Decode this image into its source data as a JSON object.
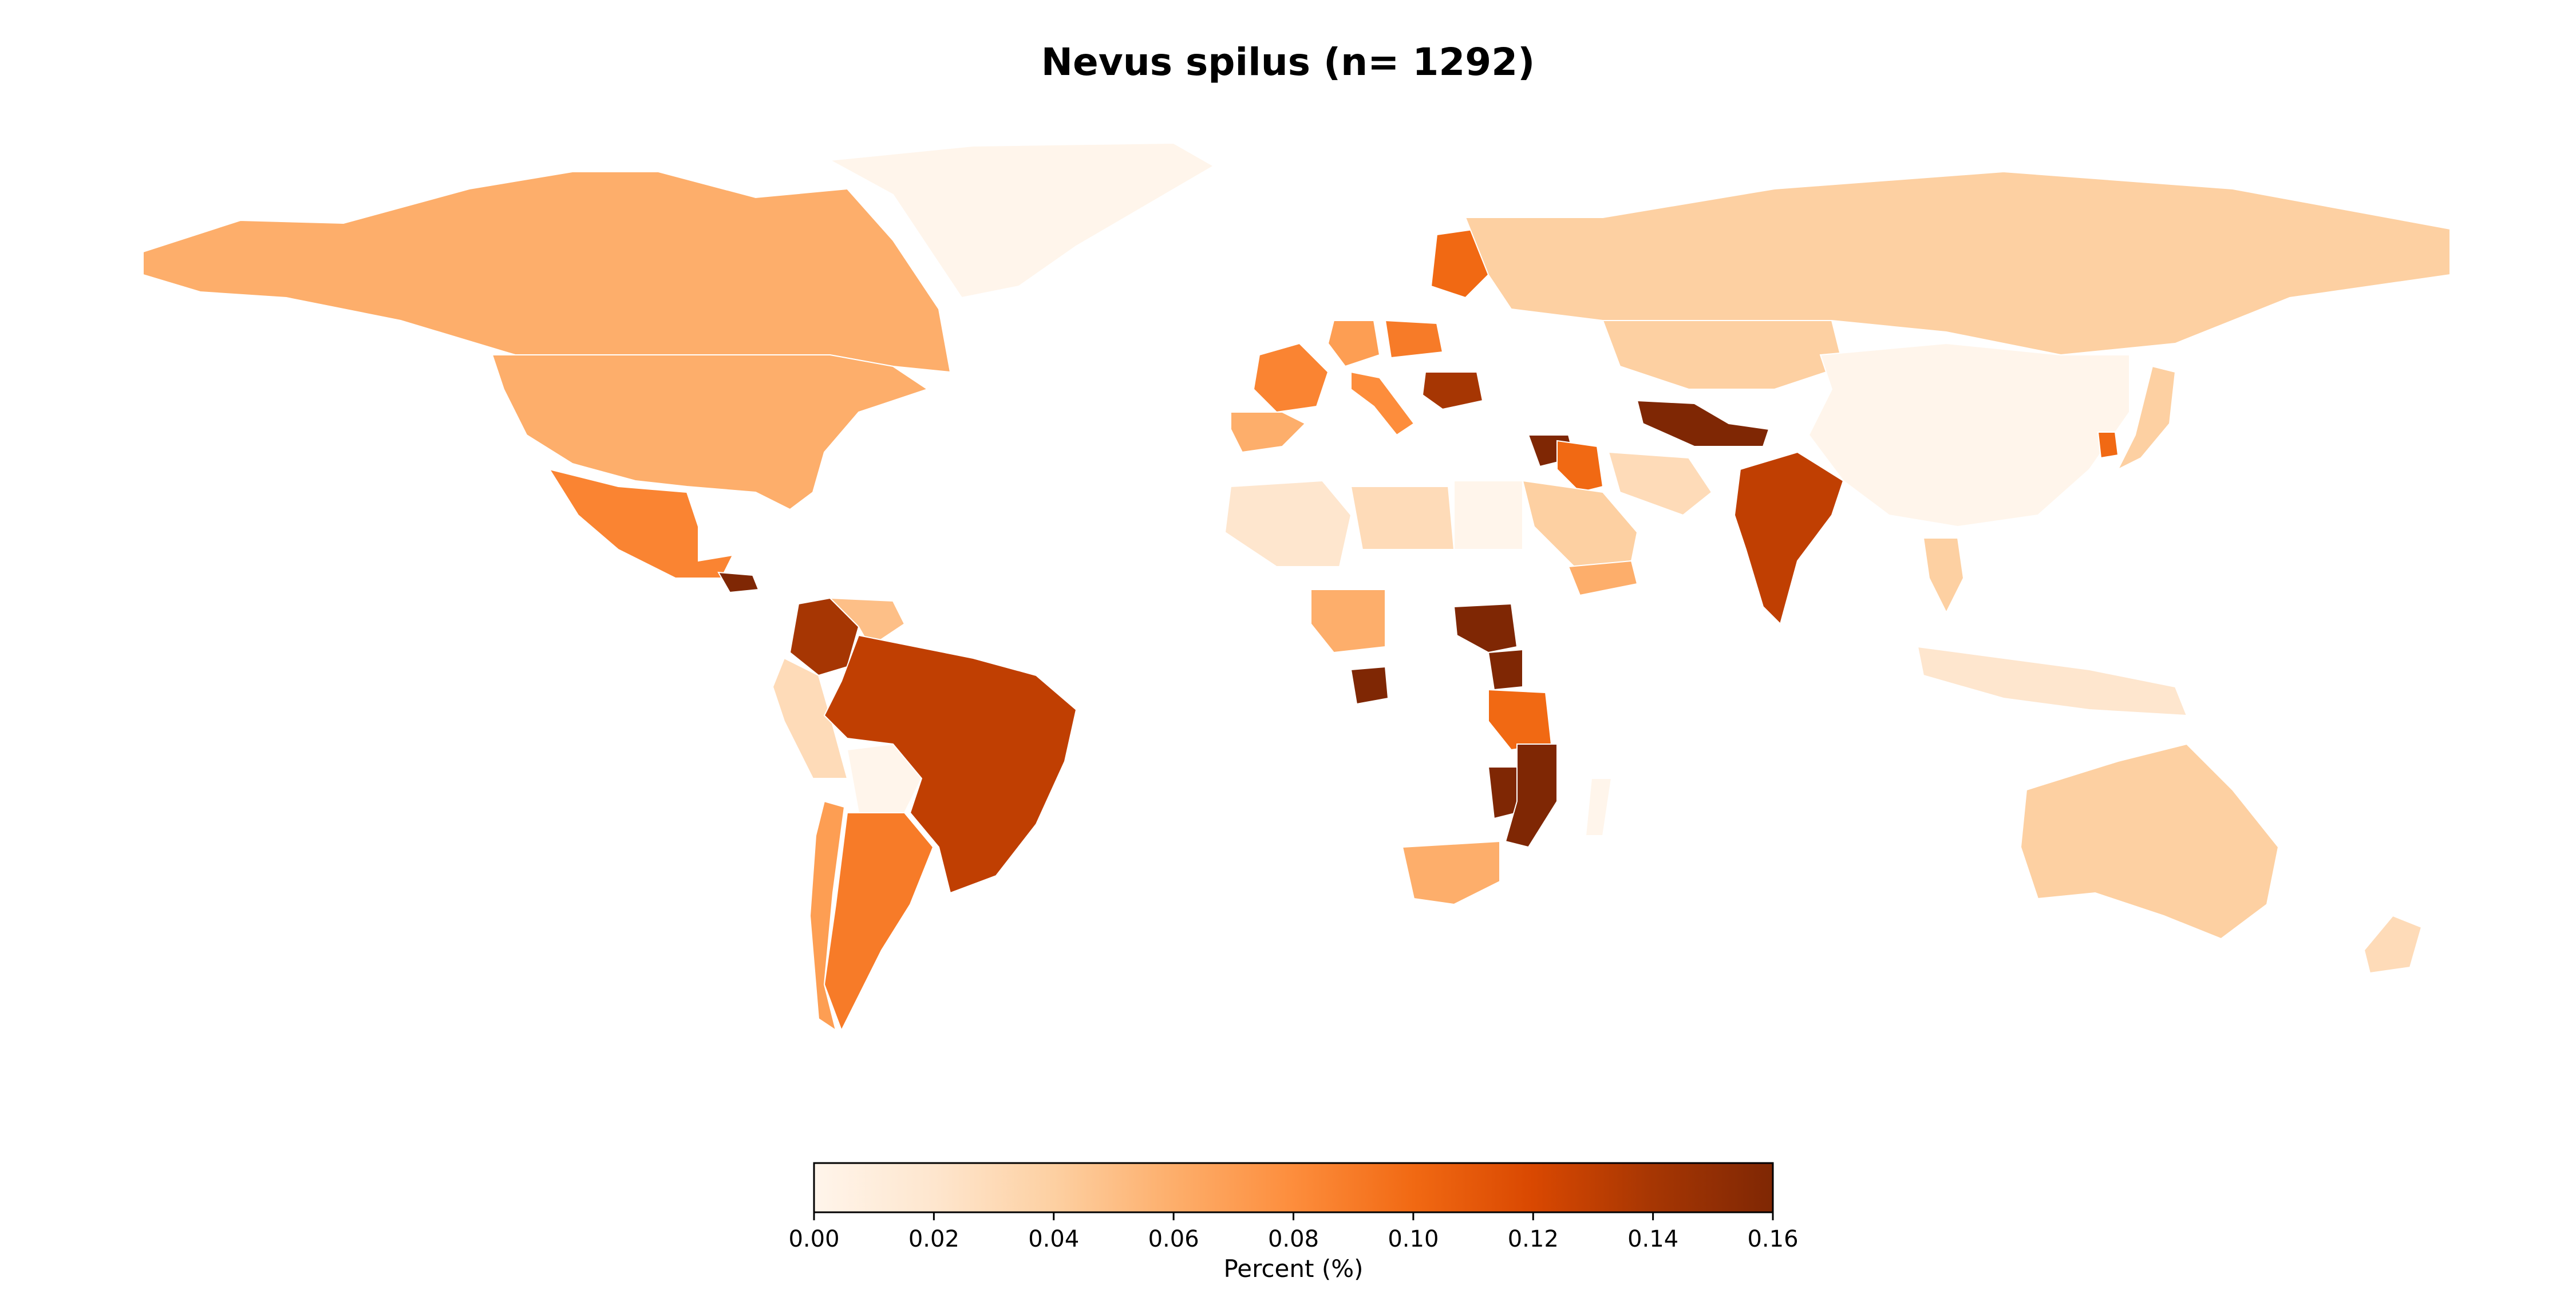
{
  "title": "Nevus spilus (n= 1292)",
  "colorbar": {
    "label": "Percent (%)",
    "min": 0.0,
    "max": 0.16,
    "ticks": [
      "0.00",
      "0.02",
      "0.04",
      "0.06",
      "0.08",
      "0.10",
      "0.12",
      "0.14",
      "0.16"
    ],
    "tick_values": [
      0.0,
      0.02,
      0.04,
      0.06,
      0.08,
      0.1,
      0.12,
      0.14,
      0.16
    ],
    "colormap": [
      "#fff5eb",
      "#fee6ce",
      "#fdd0a2",
      "#fdae6b",
      "#fd8d3c",
      "#f16913",
      "#d94801",
      "#a63603",
      "#7f2704"
    ]
  },
  "chart_data": {
    "type": "choropleth",
    "title": "Nevus spilus (n= 1292)",
    "value_unit": "Percent (%)",
    "value_range": [
      0.0,
      0.16
    ],
    "regions": [
      {
        "name": "Canada",
        "value": 0.06
      },
      {
        "name": "United States",
        "value": 0.06
      },
      {
        "name": "Mexico",
        "value": 0.085
      },
      {
        "name": "Honduras",
        "value": 0.16
      },
      {
        "name": "Colombia",
        "value": 0.14
      },
      {
        "name": "Venezuela",
        "value": 0.05
      },
      {
        "name": "Peru",
        "value": 0.03
      },
      {
        "name": "Bolivia",
        "value": 0.0
      },
      {
        "name": "Brazil",
        "value": 0.13
      },
      {
        "name": "Argentina",
        "value": 0.09
      },
      {
        "name": "Chile",
        "value": 0.07
      },
      {
        "name": "Greenland",
        "value": 0.0
      },
      {
        "name": "France",
        "value": 0.085
      },
      {
        "name": "Spain",
        "value": 0.06
      },
      {
        "name": "Germany",
        "value": 0.07
      },
      {
        "name": "Poland",
        "value": 0.09
      },
      {
        "name": "Finland",
        "value": 0.1
      },
      {
        "name": "Romania",
        "value": 0.14
      },
      {
        "name": "Italy",
        "value": 0.08
      },
      {
        "name": "Russia",
        "value": 0.04
      },
      {
        "name": "Kazakhstan",
        "value": 0.04
      },
      {
        "name": "Uzbekistan",
        "value": 0.16
      },
      {
        "name": "Syria",
        "value": 0.16
      },
      {
        "name": "Iraq",
        "value": 0.1
      },
      {
        "name": "Saudi Arabia",
        "value": 0.04
      },
      {
        "name": "Yemen",
        "value": 0.06
      },
      {
        "name": "Iran",
        "value": 0.03
      },
      {
        "name": "India",
        "value": 0.13
      },
      {
        "name": "China",
        "value": 0.0
      },
      {
        "name": "South Korea",
        "value": 0.1
      },
      {
        "name": "Japan",
        "value": 0.04
      },
      {
        "name": "Thailand",
        "value": 0.04
      },
      {
        "name": "Indonesia",
        "value": 0.02
      },
      {
        "name": "Australia",
        "value": 0.04
      },
      {
        "name": "New Zealand",
        "value": 0.03
      },
      {
        "name": "Algeria",
        "value": 0.02
      },
      {
        "name": "Libya",
        "value": 0.03
      },
      {
        "name": "Egypt",
        "value": 0.0
      },
      {
        "name": "Nigeria",
        "value": 0.06
      },
      {
        "name": "Gabon",
        "value": 0.16
      },
      {
        "name": "Uganda",
        "value": 0.16
      },
      {
        "name": "Kenya",
        "value": 0.16
      },
      {
        "name": "Tanzania",
        "value": 0.1
      },
      {
        "name": "Malawi",
        "value": 0.16
      },
      {
        "name": "Mozambique",
        "value": 0.16
      },
      {
        "name": "South Africa",
        "value": 0.06
      },
      {
        "name": "Madagascar",
        "value": 0.0
      }
    ]
  }
}
